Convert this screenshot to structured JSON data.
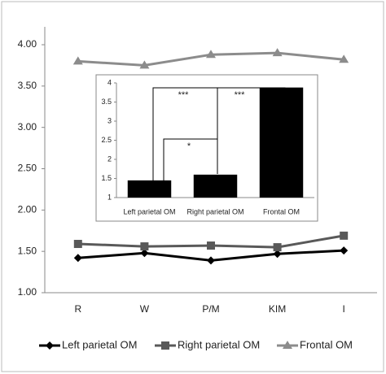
{
  "chart_data": [
    {
      "type": "line",
      "categories": [
        "R",
        "W",
        "P/M",
        "KIM",
        "I"
      ],
      "series": [
        {
          "name": "Left parietal OM",
          "color": "#000000",
          "marker": "diamond",
          "values": [
            1.42,
            1.48,
            1.39,
            1.47,
            1.51
          ]
        },
        {
          "name": "Right parietal OM",
          "color": "#595959",
          "marker": "square",
          "values": [
            1.59,
            1.56,
            1.57,
            1.55,
            1.69
          ]
        },
        {
          "name": "Frontal OM",
          "color": "#8c8c8c",
          "marker": "triangle",
          "values": [
            3.8,
            3.75,
            3.88,
            3.9,
            3.82
          ]
        }
      ],
      "ylim": [
        1,
        4
      ],
      "yticks": [
        {
          "value": 1,
          "label": "1.00"
        },
        {
          "value": 1.5,
          "label": "1.50"
        },
        {
          "value": 2,
          "label": "2.00"
        },
        {
          "value": 2.5,
          "label": "2.50"
        },
        {
          "value": 3,
          "label": "3.00"
        },
        {
          "value": 3.5,
          "label": "3.50"
        },
        {
          "value": 4,
          "label": "4.00"
        }
      ],
      "legend": "bottom"
    },
    {
      "type": "bar",
      "categories": [
        "Left parietal OM",
        "Right parietal OM",
        "Frontal OM"
      ],
      "values": [
        1.45,
        1.6,
        3.88
      ],
      "color": "#000000",
      "ylim": [
        1,
        4
      ],
      "yticks": [
        1,
        1.5,
        2,
        2.5,
        3,
        3.5,
        4
      ],
      "annotations": [
        "***",
        "*",
        "***"
      ]
    }
  ]
}
